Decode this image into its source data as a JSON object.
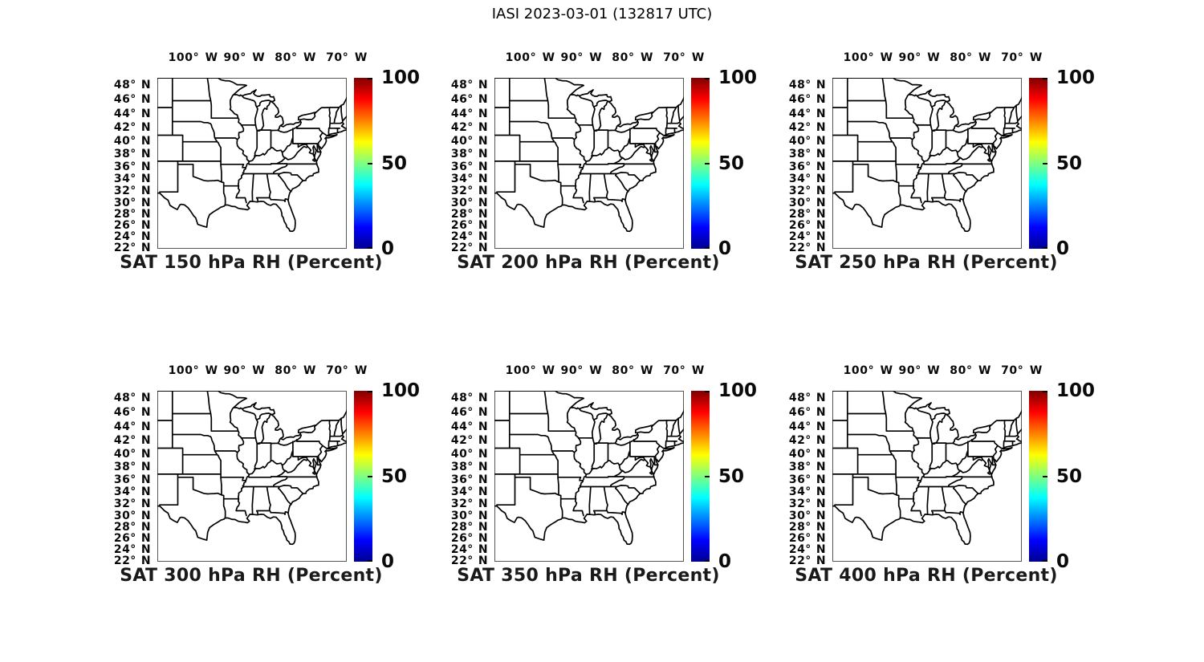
{
  "figure": {
    "title": "IASI 2023-03-01 (132817 UTC)",
    "background": "#ffffff",
    "text_color": "#000000"
  },
  "axes": {
    "x_tick_labels": [
      "100° W",
      "90° W",
      "80° W",
      "70° W"
    ],
    "y_tick_labels": [
      "48° N",
      "46° N",
      "44° N",
      "42° N",
      "40° N",
      "38° N",
      "36° N",
      "34° N",
      "32° N",
      "30° N",
      "28° N",
      "26° N",
      "24° N",
      "22° N"
    ]
  },
  "colorbar": {
    "tick_labels": [
      "100",
      "50",
      "0"
    ],
    "min": 0,
    "max": 100,
    "colormap": "jet",
    "colors": [
      "#00008f",
      "#0000ff",
      "#00ffff",
      "#ffff00",
      "#ff0000",
      "#7f0000"
    ]
  },
  "panels": [
    {
      "title": "SAT 150 hPa RH (Percent)"
    },
    {
      "title": "SAT 200 hPa RH (Percent)"
    },
    {
      "title": "SAT 250 hPa RH (Percent)"
    },
    {
      "title": "SAT 300 hPa RH (Percent)"
    },
    {
      "title": "SAT 350 hPa RH (Percent)"
    },
    {
      "title": "SAT 400 hPa RH (Percent)"
    }
  ],
  "chart_data": {
    "type": "map",
    "figure_title": "IASI 2023-03-01 (132817 UTC)",
    "layout": {
      "rows": 2,
      "cols": 3
    },
    "panels": [
      {
        "title": "SAT 150 hPa RH (Percent)",
        "pressure_hPa": 150
      },
      {
        "title": "SAT 200 hPa RH (Percent)",
        "pressure_hPa": 200
      },
      {
        "title": "SAT 250 hPa RH (Percent)",
        "pressure_hPa": 250
      },
      {
        "title": "SAT 300 hPa RH (Percent)",
        "pressure_hPa": 300
      },
      {
        "title": "SAT 350 hPa RH (Percent)",
        "pressure_hPa": 350
      },
      {
        "title": "SAT 400 hPa RH (Percent)",
        "pressure_hPa": 400
      }
    ],
    "variable": "RH (Percent)",
    "colorbar": {
      "min": 0,
      "max": 100,
      "ticks": [
        100,
        50,
        0
      ],
      "colormap": "jet"
    },
    "x_ticks_deg_west": [
      100,
      90,
      80,
      70
    ],
    "y_ticks_deg_north": [
      48,
      46,
      44,
      42,
      40,
      38,
      36,
      34,
      32,
      30,
      28,
      26,
      24,
      22
    ],
    "map_extent": {
      "lon_west": -107,
      "lon_east": -70,
      "lat_south": 22,
      "lat_north": 49,
      "projection": "mercator"
    },
    "overlay_data": "none (blank basemaps with US state outlines, identical in all 6 panels)"
  }
}
